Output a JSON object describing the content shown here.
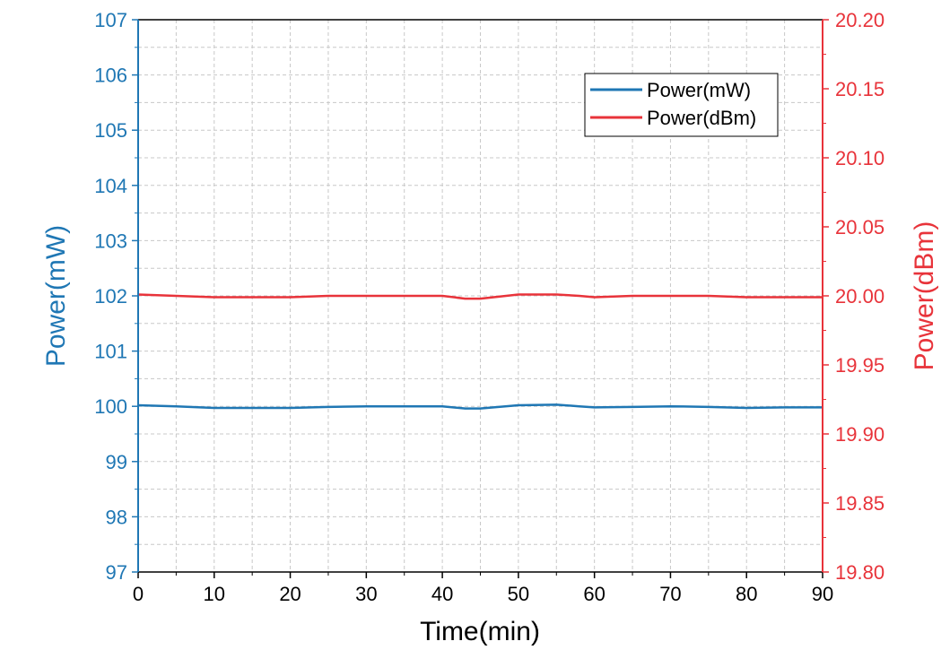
{
  "chart_data": {
    "type": "line",
    "title": "",
    "xlabel": "Time(min)",
    "ylabel_left": "Power(mW)",
    "ylabel_right": "Power(dBm)",
    "xlim": [
      0,
      90
    ],
    "ylim_left": [
      97,
      107
    ],
    "ylim_right": [
      19.8,
      20.2
    ],
    "x_ticks": [
      "0",
      "10",
      "20",
      "30",
      "40",
      "50",
      "60",
      "70",
      "80",
      "90"
    ],
    "y_left_ticks": [
      "97",
      "98",
      "99",
      "100",
      "101",
      "102",
      "103",
      "104",
      "105",
      "106",
      "107"
    ],
    "y_right_ticks": [
      "19.80",
      "19.85",
      "19.90",
      "19.95",
      "20.00",
      "20.05",
      "20.10",
      "20.15",
      "20.20"
    ],
    "grid": true,
    "legend_position": "top-right",
    "colors": {
      "left_axis": "#1f77b4",
      "right_axis": "#e8333a"
    },
    "series": [
      {
        "name": "Power(mW)",
        "axis": "left",
        "color": "#1f77b4",
        "x": [
          0,
          5,
          10,
          15,
          20,
          25,
          30,
          35,
          40,
          43,
          45,
          50,
          55,
          58,
          60,
          65,
          70,
          75,
          80,
          85,
          90
        ],
        "values": [
          100.02,
          100.0,
          99.97,
          99.97,
          99.97,
          99.99,
          100.0,
          100.0,
          100.0,
          99.96,
          99.96,
          100.02,
          100.03,
          100.0,
          99.98,
          99.99,
          100.0,
          99.99,
          99.97,
          99.98,
          99.98
        ]
      },
      {
        "name": "Power(dBm)",
        "axis": "right",
        "color": "#e8333a",
        "x": [
          0,
          5,
          10,
          15,
          20,
          25,
          30,
          35,
          40,
          43,
          45,
          50,
          55,
          58,
          60,
          65,
          70,
          75,
          80,
          85,
          90
        ],
        "values": [
          20.001,
          20.0,
          19.999,
          19.999,
          19.999,
          20.0,
          20.0,
          20.0,
          20.0,
          19.998,
          19.998,
          20.001,
          20.001,
          20.0,
          19.999,
          20.0,
          20.0,
          20.0,
          19.999,
          19.999,
          19.999
        ]
      }
    ]
  }
}
